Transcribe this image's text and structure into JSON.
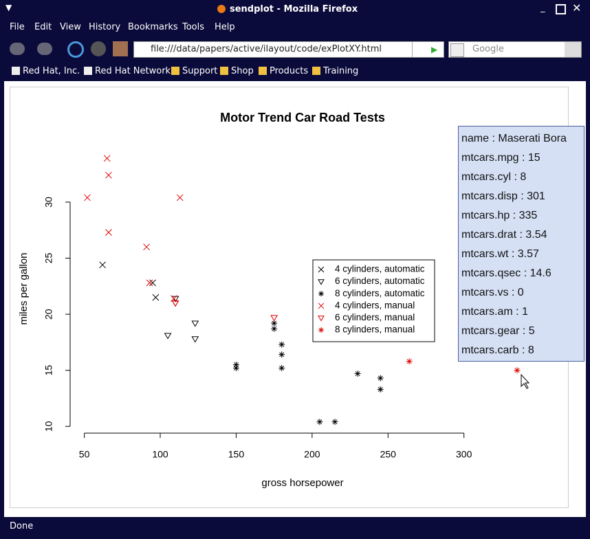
{
  "window": {
    "title": "sendplot - Mozilla Firefox"
  },
  "menu": [
    "File",
    "Edit",
    "View",
    "History",
    "Bookmarks",
    "Tools",
    "Help"
  ],
  "url": "file:///data/papers/active/ilayout/code/exPlotXY.html",
  "search_placeholder": "Google",
  "bookmarks": [
    "Red Hat, Inc.",
    "Red Hat Network",
    "Support",
    "Shop",
    "Products",
    "Training"
  ],
  "status": "Done",
  "tooltip": {
    "lines": [
      "name  : Maserati Bora",
      "mtcars.mpg  : 15",
      "mtcars.cyl  : 8",
      "mtcars.disp  : 301",
      "mtcars.hp  : 335",
      "mtcars.drat  : 3.54",
      "mtcars.wt  : 3.57",
      "mtcars.qsec  : 14.6",
      "mtcars.vs  : 0",
      "mtcars.am  : 1",
      "mtcars.gear  : 5",
      "mtcars.carb  : 8"
    ]
  },
  "chart_data": {
    "type": "scatter",
    "title": "Motor Trend Car Road Tests",
    "x_label": "gross horsepower",
    "y_label": "miles per gallon",
    "xlim": [
      40.68,
      346.32
    ],
    "ylim": [
      9.46,
      34.84
    ],
    "xticks": [
      50,
      100,
      150,
      200,
      250,
      300
    ],
    "yticks": [
      10,
      15,
      20,
      25,
      30
    ],
    "series": [
      {
        "name": "4 cylinders, automatic",
        "color": "#000000",
        "marker": "x",
        "x": [
          62,
          95,
          97
        ],
        "values": [
          24.4,
          22.8,
          21.5
        ]
      },
      {
        "name": "6 cylinders, automatic",
        "color": "#000000",
        "marker": "triangle-down",
        "x": [
          110,
          105,
          123,
          123
        ],
        "values": [
          21.4,
          18.1,
          19.2,
          17.8
        ]
      },
      {
        "name": "8 cylinders, automatic",
        "color": "#000000",
        "marker": "asterisk",
        "x": [
          175,
          245,
          180,
          180,
          180,
          205,
          215,
          230,
          150,
          150,
          245,
          175
        ],
        "values": [
          18.7,
          14.3,
          16.4,
          17.3,
          15.2,
          10.4,
          10.4,
          14.7,
          15.5,
          15.2,
          13.3,
          19.2
        ]
      },
      {
        "name": "4 cylinders, manual",
        "color": "#dd0000",
        "marker": "x",
        "x": [
          93,
          66,
          52,
          65,
          66,
          91,
          113,
          109
        ],
        "values": [
          22.8,
          32.4,
          30.4,
          33.9,
          27.3,
          26,
          30.4,
          21.4
        ]
      },
      {
        "name": "6 cylinders, manual",
        "color": "#dd0000",
        "marker": "triangle-down",
        "x": [
          110,
          110,
          175
        ],
        "values": [
          21,
          21,
          19.7
        ]
      },
      {
        "name": "8 cylinders, manual",
        "color": "#dd0000",
        "marker": "asterisk",
        "x": [
          264,
          335
        ],
        "values": [
          15.8,
          15
        ]
      }
    ]
  }
}
